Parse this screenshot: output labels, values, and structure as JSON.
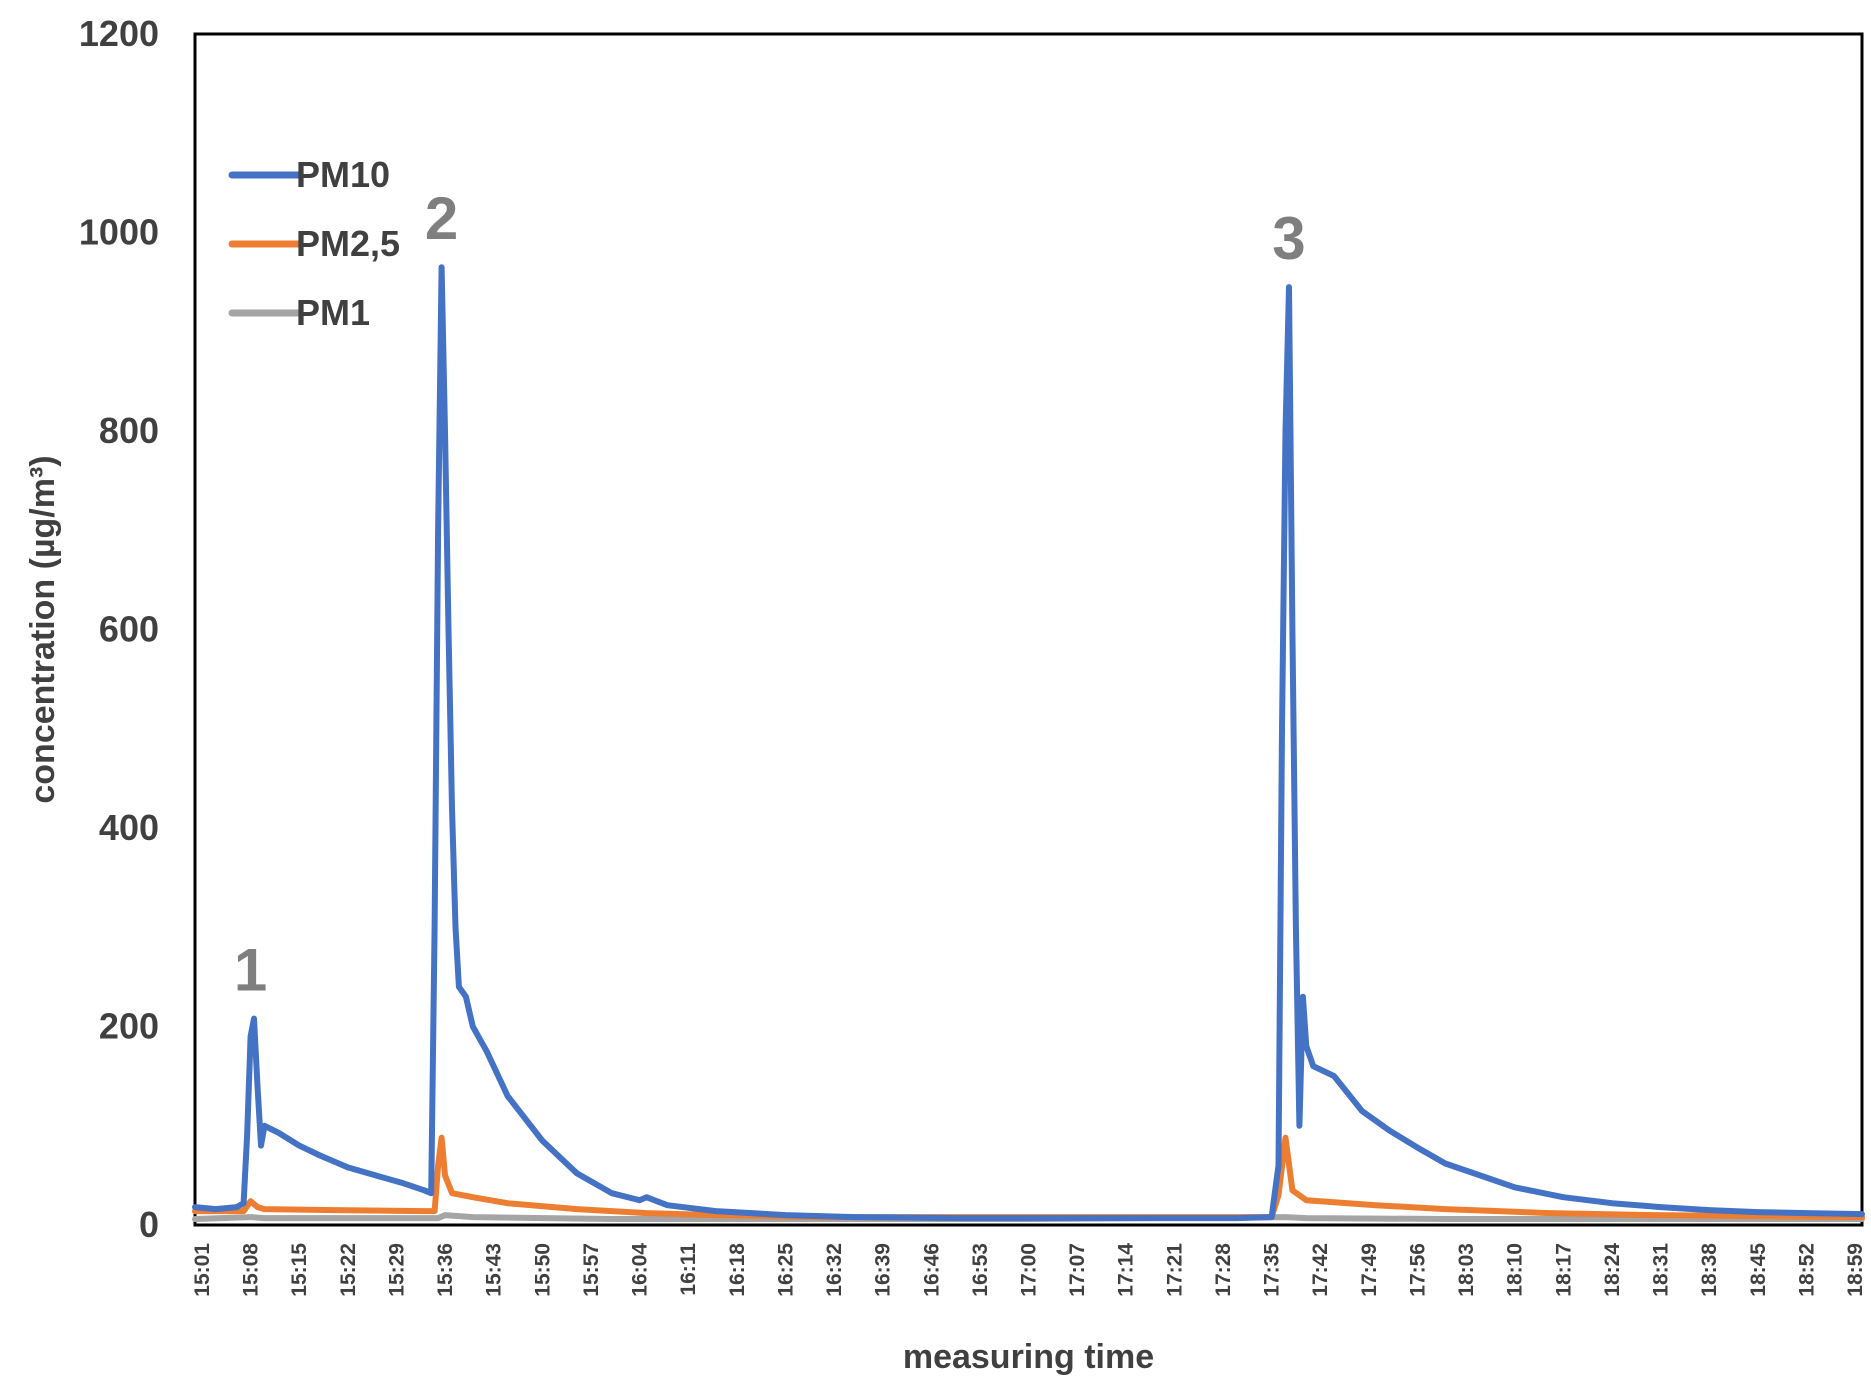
{
  "chart_data": {
    "type": "line",
    "title": "",
    "xlabel": "measuring time",
    "ylabel": "concentration (µg/m³)",
    "ylim": [
      0,
      1200
    ],
    "yticks": [
      0,
      200,
      400,
      600,
      800,
      1000,
      1200
    ],
    "grid": false,
    "legend_position": "top-left",
    "x_start": "15:00",
    "x_end": "19:00",
    "xtick_labels": [
      "15:01",
      "15:08",
      "15:15",
      "15:22",
      "15:29",
      "15:36",
      "15:43",
      "15:50",
      "15:57",
      "16:04",
      "16:11",
      "16:18",
      "16:25",
      "16:32",
      "16:39",
      "16:46",
      "16:53",
      "17:00",
      "17:07",
      "17:14",
      "17:21",
      "17:28",
      "17:35",
      "17:42",
      "17:49",
      "17:56",
      "18:03",
      "18:10",
      "18:17",
      "18:24",
      "18:31",
      "18:38",
      "18:45",
      "18:52",
      "18:59"
    ],
    "series": [
      {
        "name": "PM10",
        "color": "#4472C4",
        "points": [
          [
            "15:00",
            18
          ],
          [
            "15:03",
            16
          ],
          [
            "15:06",
            18
          ],
          [
            "15:07",
            22
          ],
          [
            "15:07.5",
            90
          ],
          [
            "15:08",
            190
          ],
          [
            "15:08.5",
            208
          ],
          [
            "15:09",
            140
          ],
          [
            "15:09.5",
            80
          ],
          [
            "15:10",
            100
          ],
          [
            "15:12",
            93
          ],
          [
            "15:15",
            80
          ],
          [
            "15:18",
            70
          ],
          [
            "15:22",
            58
          ],
          [
            "15:26",
            50
          ],
          [
            "15:30",
            42
          ],
          [
            "15:33",
            35
          ],
          [
            "15:34",
            32
          ],
          [
            "15:34.5",
            300
          ],
          [
            "15:35",
            700
          ],
          [
            "15:35.5",
            965
          ],
          [
            "15:36",
            800
          ],
          [
            "15:36.5",
            600
          ],
          [
            "15:37",
            420
          ],
          [
            "15:37.5",
            300
          ],
          [
            "15:38",
            240
          ],
          [
            "15:39",
            230
          ],
          [
            "15:40",
            200
          ],
          [
            "15:42",
            175
          ],
          [
            "15:45",
            130
          ],
          [
            "15:50",
            85
          ],
          [
            "15:55",
            52
          ],
          [
            "16:00",
            32
          ],
          [
            "16:04",
            25
          ],
          [
            "16:05",
            28
          ],
          [
            "16:08",
            20
          ],
          [
            "16:15",
            14
          ],
          [
            "16:25",
            10
          ],
          [
            "16:35",
            8
          ],
          [
            "16:50",
            7
          ],
          [
            "17:10",
            7
          ],
          [
            "17:30",
            7
          ],
          [
            "17:35",
            8
          ],
          [
            "17:36",
            60
          ],
          [
            "17:36.5",
            500
          ],
          [
            "17:37",
            800
          ],
          [
            "17:37.5",
            945
          ],
          [
            "17:38",
            600
          ],
          [
            "17:38.5",
            300
          ],
          [
            "17:39",
            100
          ],
          [
            "17:39.5",
            230
          ],
          [
            "17:40",
            180
          ],
          [
            "17:41",
            160
          ],
          [
            "17:44",
            150
          ],
          [
            "17:48",
            115
          ],
          [
            "17:52",
            95
          ],
          [
            "17:56",
            78
          ],
          [
            "18:00",
            62
          ],
          [
            "18:05",
            50
          ],
          [
            "18:10",
            38
          ],
          [
            "18:17",
            28
          ],
          [
            "18:24",
            22
          ],
          [
            "18:31",
            18
          ],
          [
            "18:38",
            15
          ],
          [
            "18:45",
            13
          ],
          [
            "18:52",
            12
          ],
          [
            "19:00",
            11
          ]
        ]
      },
      {
        "name": "PM2,5",
        "color": "#ED7D31",
        "points": [
          [
            "15:00",
            14
          ],
          [
            "15:07",
            14
          ],
          [
            "15:08",
            24
          ],
          [
            "15:09",
            18
          ],
          [
            "15:10",
            16
          ],
          [
            "15:20",
            15
          ],
          [
            "15:33",
            14
          ],
          [
            "15:34.5",
            14
          ],
          [
            "15:35",
            60
          ],
          [
            "15:35.5",
            88
          ],
          [
            "15:36",
            50
          ],
          [
            "15:37",
            32
          ],
          [
            "15:40",
            28
          ],
          [
            "15:45",
            22
          ],
          [
            "15:55",
            16
          ],
          [
            "16:05",
            12
          ],
          [
            "16:15",
            10
          ],
          [
            "16:30",
            8
          ],
          [
            "17:00",
            8
          ],
          [
            "17:35",
            8
          ],
          [
            "17:36",
            30
          ],
          [
            "17:37",
            88
          ],
          [
            "17:38",
            35
          ],
          [
            "17:40",
            25
          ],
          [
            "17:50",
            20
          ],
          [
            "18:00",
            16
          ],
          [
            "18:15",
            12
          ],
          [
            "18:30",
            10
          ],
          [
            "18:45",
            9
          ],
          [
            "19:00",
            8
          ]
        ]
      },
      {
        "name": "PM1",
        "color": "#A5A5A5",
        "points": [
          [
            "15:00",
            6
          ],
          [
            "15:08",
            8
          ],
          [
            "15:10",
            7
          ],
          [
            "15:35",
            7
          ],
          [
            "15:36",
            10
          ],
          [
            "15:40",
            8
          ],
          [
            "16:00",
            6
          ],
          [
            "17:00",
            6
          ],
          [
            "17:37",
            8
          ],
          [
            "17:40",
            7
          ],
          [
            "18:00",
            6
          ],
          [
            "19:00",
            6
          ]
        ]
      }
    ],
    "annotations": [
      {
        "text": "1",
        "x": "15:08",
        "y": 208
      },
      {
        "text": "2",
        "x": "15:35.5",
        "y": 965
      },
      {
        "text": "3",
        "x": "17:37.5",
        "y": 945
      }
    ]
  }
}
